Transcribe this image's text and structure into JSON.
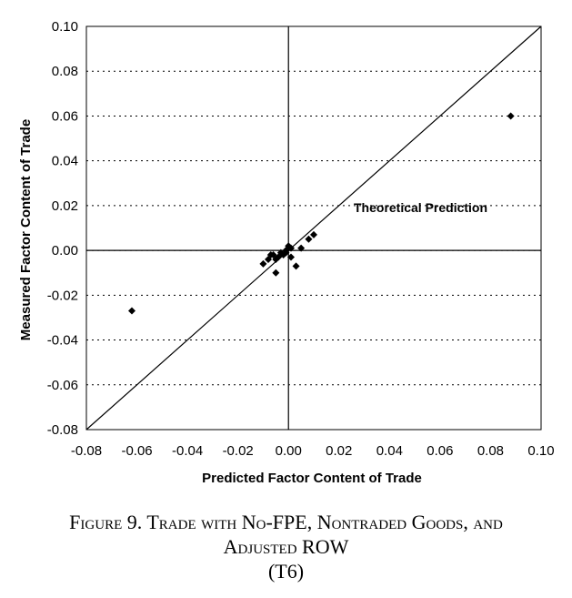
{
  "chart_data": {
    "type": "scatter",
    "xlabel": "Predicted Factor Content of Trade",
    "ylabel": "Measured Factor Content of Trade",
    "xlim": [
      -0.08,
      0.1
    ],
    "ylim": [
      -0.08,
      0.1
    ],
    "x_ticks": [
      "-0.08",
      "-0.06",
      "-0.04",
      "-0.02",
      "0.00",
      "0.02",
      "0.04",
      "0.06",
      "0.08",
      "0.10"
    ],
    "y_ticks": [
      "0.10",
      "0.08",
      "0.06",
      "0.04",
      "0.02",
      "0.00",
      "-0.02",
      "-0.04",
      "-0.06",
      "-0.08"
    ],
    "grid": "dotted horizontal at major y ticks",
    "reference_line": {
      "label": "Theoretical Prediction",
      "from": [
        -0.08,
        -0.08
      ],
      "to": [
        0.1,
        0.1
      ]
    },
    "annotation": "Theoretical Prediction",
    "points": [
      {
        "x": 0.088,
        "y": 0.06
      },
      {
        "x": -0.062,
        "y": -0.027
      },
      {
        "x": 0.01,
        "y": 0.007
      },
      {
        "x": 0.008,
        "y": 0.005
      },
      {
        "x": 0.005,
        "y": 0.001
      },
      {
        "x": 0.003,
        "y": -0.007
      },
      {
        "x": 0.0,
        "y": 0.002
      },
      {
        "x": 0.001,
        "y": -0.003
      },
      {
        "x": -0.001,
        "y": 0.0
      },
      {
        "x": -0.002,
        "y": -0.002
      },
      {
        "x": -0.003,
        "y": -0.001
      },
      {
        "x": -0.004,
        "y": -0.003
      },
      {
        "x": -0.005,
        "y": -0.004
      },
      {
        "x": -0.006,
        "y": -0.002
      },
      {
        "x": -0.007,
        "y": -0.002
      },
      {
        "x": -0.008,
        "y": -0.004
      },
      {
        "x": -0.01,
        "y": -0.006
      },
      {
        "x": -0.005,
        "y": -0.01
      },
      {
        "x": -0.001,
        "y": -0.001
      },
      {
        "x": 0.001,
        "y": 0.001
      }
    ],
    "marker": "diamond",
    "marker_color": "#000000"
  },
  "caption": {
    "line1": "Figure 9.  Trade with No-FPE, Nontraded Goods, and",
    "line2": "Adjusted ROW",
    "line3": "(T6)"
  }
}
